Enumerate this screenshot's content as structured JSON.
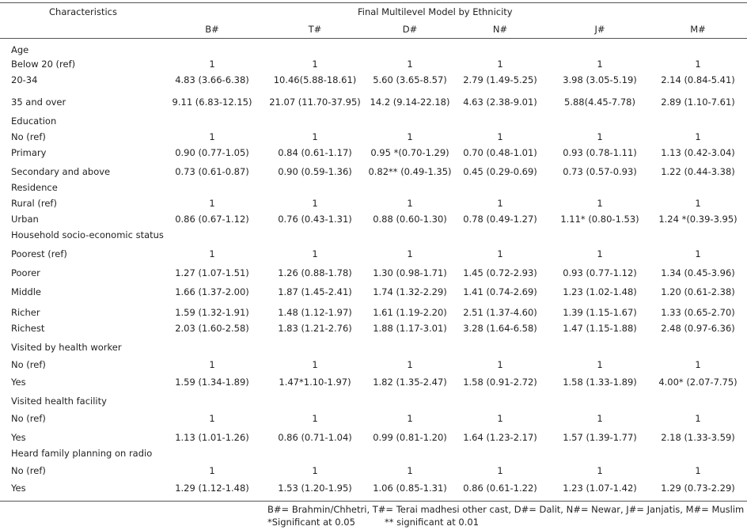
{
  "header": {
    "characteristics": "Characteristics",
    "group_title": "Final Multilevel Model by Ethnicity",
    "columns": [
      "B#",
      "T#",
      "D#",
      "N#",
      "J#",
      "M#"
    ]
  },
  "rows": [
    {
      "label": "Age",
      "type": "section"
    },
    {
      "label": "Below 20 (ref)",
      "values": [
        "1",
        "1",
        "1",
        "1",
        "1",
        "1"
      ]
    },
    {
      "label": "20-34",
      "values": [
        "4.83 (3.66-6.38)",
        "10.46(5.88-18.61)",
        "5.60 (3.65-8.57)",
        "2.79 (1.49-5.25)",
        "3.98 (3.05-5.19)",
        "2.14 (0.84-5.41)"
      ]
    },
    {
      "label": "35 and over",
      "values": [
        "9.11 (6.83-12.15)",
        "21.07 (11.70-37.95)",
        "14.2 (9.14-22.18)",
        "4.63 (2.38-9.01)",
        "5.88(4.45-7.78)",
        "2.89 (1.10-7.61)"
      ]
    },
    {
      "label": "Education",
      "type": "section"
    },
    {
      "label": "No (ref)",
      "values": [
        "1",
        "1",
        "1",
        "1",
        "1",
        "1"
      ]
    },
    {
      "label": "Primary",
      "values": [
        "0.90 (0.77-1.05)",
        "0.84 (0.61-1.17)",
        "0.95 *(0.70-1.29)",
        "0.70 (0.48-1.01)",
        "0.93 (0.78-1.11)",
        "1.13 (0.42-3.04)"
      ]
    },
    {
      "label": "Secondary and above",
      "values": [
        "0.73 (0.61-0.87)",
        "0.90 (0.59-1.36)",
        "0.82** (0.49-1.35)",
        "0.45 (0.29-0.69)",
        "0.73 (0.57-0.93)",
        "1.22 (0.44-3.38)"
      ]
    },
    {
      "label": "Residence",
      "type": "section"
    },
    {
      "label": "Rural (ref)",
      "values": [
        "1",
        "1",
        "1",
        "1",
        "1",
        "1"
      ]
    },
    {
      "label": "Urban",
      "values": [
        "0.86 (0.67-1.12)",
        "0.76 (0.43-1.31)",
        "0.88 (0.60-1.30)",
        "0.78 (0.49-1.27)",
        "1.11* (0.80-1.53)",
        "1.24 *(0.39-3.95)"
      ]
    },
    {
      "label": "Household socio-economic status",
      "type": "section"
    },
    {
      "label": "Poorest (ref)",
      "values": [
        "1",
        "1",
        "1",
        "1",
        "1",
        "1"
      ]
    },
    {
      "label": "Poorer",
      "values": [
        "1.27 (1.07-1.51)",
        "1.26 (0.88-1.78)",
        "1.30 (0.98-1.71)",
        "1.45 (0.72-2.93)",
        "0.93 (0.77-1.12)",
        "1.34 (0.45-3.96)"
      ]
    },
    {
      "label": "Middle",
      "values": [
        "1.66 (1.37-2.00)",
        "1.87 (1.45-2.41)",
        "1.74 (1.32-2.29)",
        "1.41 (0.74-2.69)",
        "1.23 (1.02-1.48)",
        "1.20 (0.61-2.38)"
      ]
    },
    {
      "label": "Richer",
      "values": [
        "1.59 (1.32-1.91)",
        "1.48 (1.12-1.97)",
        "1.61 (1.19-2.20)",
        "2.51 (1.37-4.60)",
        "1.39 (1.15-1.67)",
        "1.33 (0.65-2.70)"
      ]
    },
    {
      "label": "Richest",
      "values": [
        "2.03 (1.60-2.58)",
        "1.83 (1.21-2.76)",
        "1.88 (1.17-3.01)",
        "3.28 (1.64-6.58)",
        "1.47 (1.15-1.88)",
        "2.48 (0.97-6.36)"
      ]
    },
    {
      "label": "Visited by health worker",
      "type": "section"
    },
    {
      "label": "No (ref)",
      "values": [
        "1",
        "1",
        "1",
        "1",
        "1",
        "1"
      ]
    },
    {
      "label": "Yes",
      "values": [
        "1.59 (1.34-1.89)",
        "1.47*1.10-1.97)",
        "1.82 (1.35-2.47)",
        "1.58 (0.91-2.72)",
        "1.58 (1.33-1.89)",
        "4.00* (2.07-7.75)"
      ]
    },
    {
      "label": "Visited health facility",
      "type": "section"
    },
    {
      "label": "No (ref)",
      "values": [
        "1",
        "1",
        "1",
        "1",
        "1",
        "1"
      ]
    },
    {
      "label": "Yes",
      "values": [
        "1.13 (1.01-1.26)",
        "0.86 (0.71-1.04)",
        "0.99 (0.81-1.20)",
        "1.64 (1.23-2.17)",
        "1.57 (1.39-1.77)",
        "2.18 (1.33-3.59)"
      ]
    },
    {
      "label": "Heard family planning on radio",
      "type": "section"
    },
    {
      "label": "No (ref)",
      "values": [
        "1",
        "1",
        "1",
        "1",
        "1",
        "1"
      ]
    },
    {
      "label": "Yes",
      "values": [
        "1.29  (1.12-1.48)",
        "1.53 (1.20-1.95)",
        "1.06 (0.85-1.31)",
        "0.86 (0.61-1.22)",
        "1.23 (1.07-1.42)",
        "1.29 (0.73-2.29)"
      ]
    }
  ],
  "footnotes": {
    "legend": "B#= Brahmin/Chhetri, T#= Terai madhesi other cast, D#= Dalit, N#= Newar, J#= Janjatis, M#= Muslim",
    "sig05": "*Significant at 0.05",
    "sig01": "** significant at 0.01"
  }
}
